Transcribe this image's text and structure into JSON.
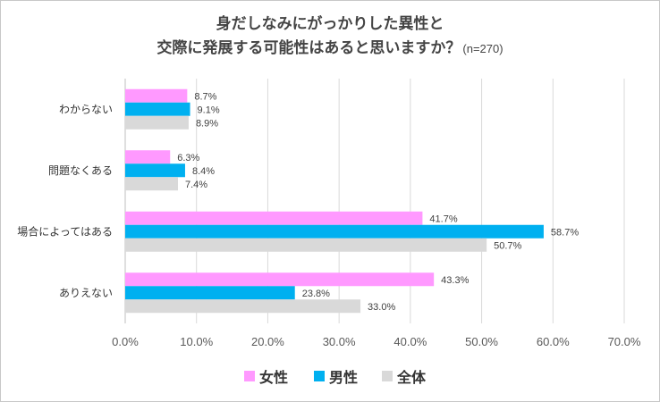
{
  "chart_data": {
    "type": "bar",
    "orientation": "horizontal",
    "title_line1": "身だしなみにがっかりした異性と",
    "title_line2": "交際に発展する可能性はあると思いますか？",
    "subtitle": "(n=270)",
    "categories": [
      "わからない",
      "問題なくある",
      "場合によってはある",
      "ありえない"
    ],
    "series": [
      {
        "name": "女性",
        "color": "#ff99ff",
        "values": [
          8.7,
          6.3,
          41.7,
          43.3
        ],
        "labels": [
          "8.7%",
          "6.3%",
          "41.7%",
          "43.3%"
        ]
      },
      {
        "name": "男性",
        "color": "#00b0f0",
        "values": [
          9.1,
          8.4,
          58.7,
          23.8
        ],
        "labels": [
          "9.1%",
          "8.4%",
          "58.7%",
          "23.8%"
        ]
      },
      {
        "name": "全体",
        "color": "#d9d9d9",
        "values": [
          8.9,
          7.4,
          50.7,
          33.0
        ],
        "labels": [
          "8.9%",
          "7.4%",
          "50.7%",
          "33.0%"
        ]
      }
    ],
    "xlim": [
      0,
      70
    ],
    "xticks": [
      "0.0%",
      "10.0%",
      "20.0%",
      "30.0%",
      "40.0%",
      "50.0%",
      "60.0%",
      "70.0%"
    ],
    "grid": true,
    "legend_position": "bottom"
  }
}
